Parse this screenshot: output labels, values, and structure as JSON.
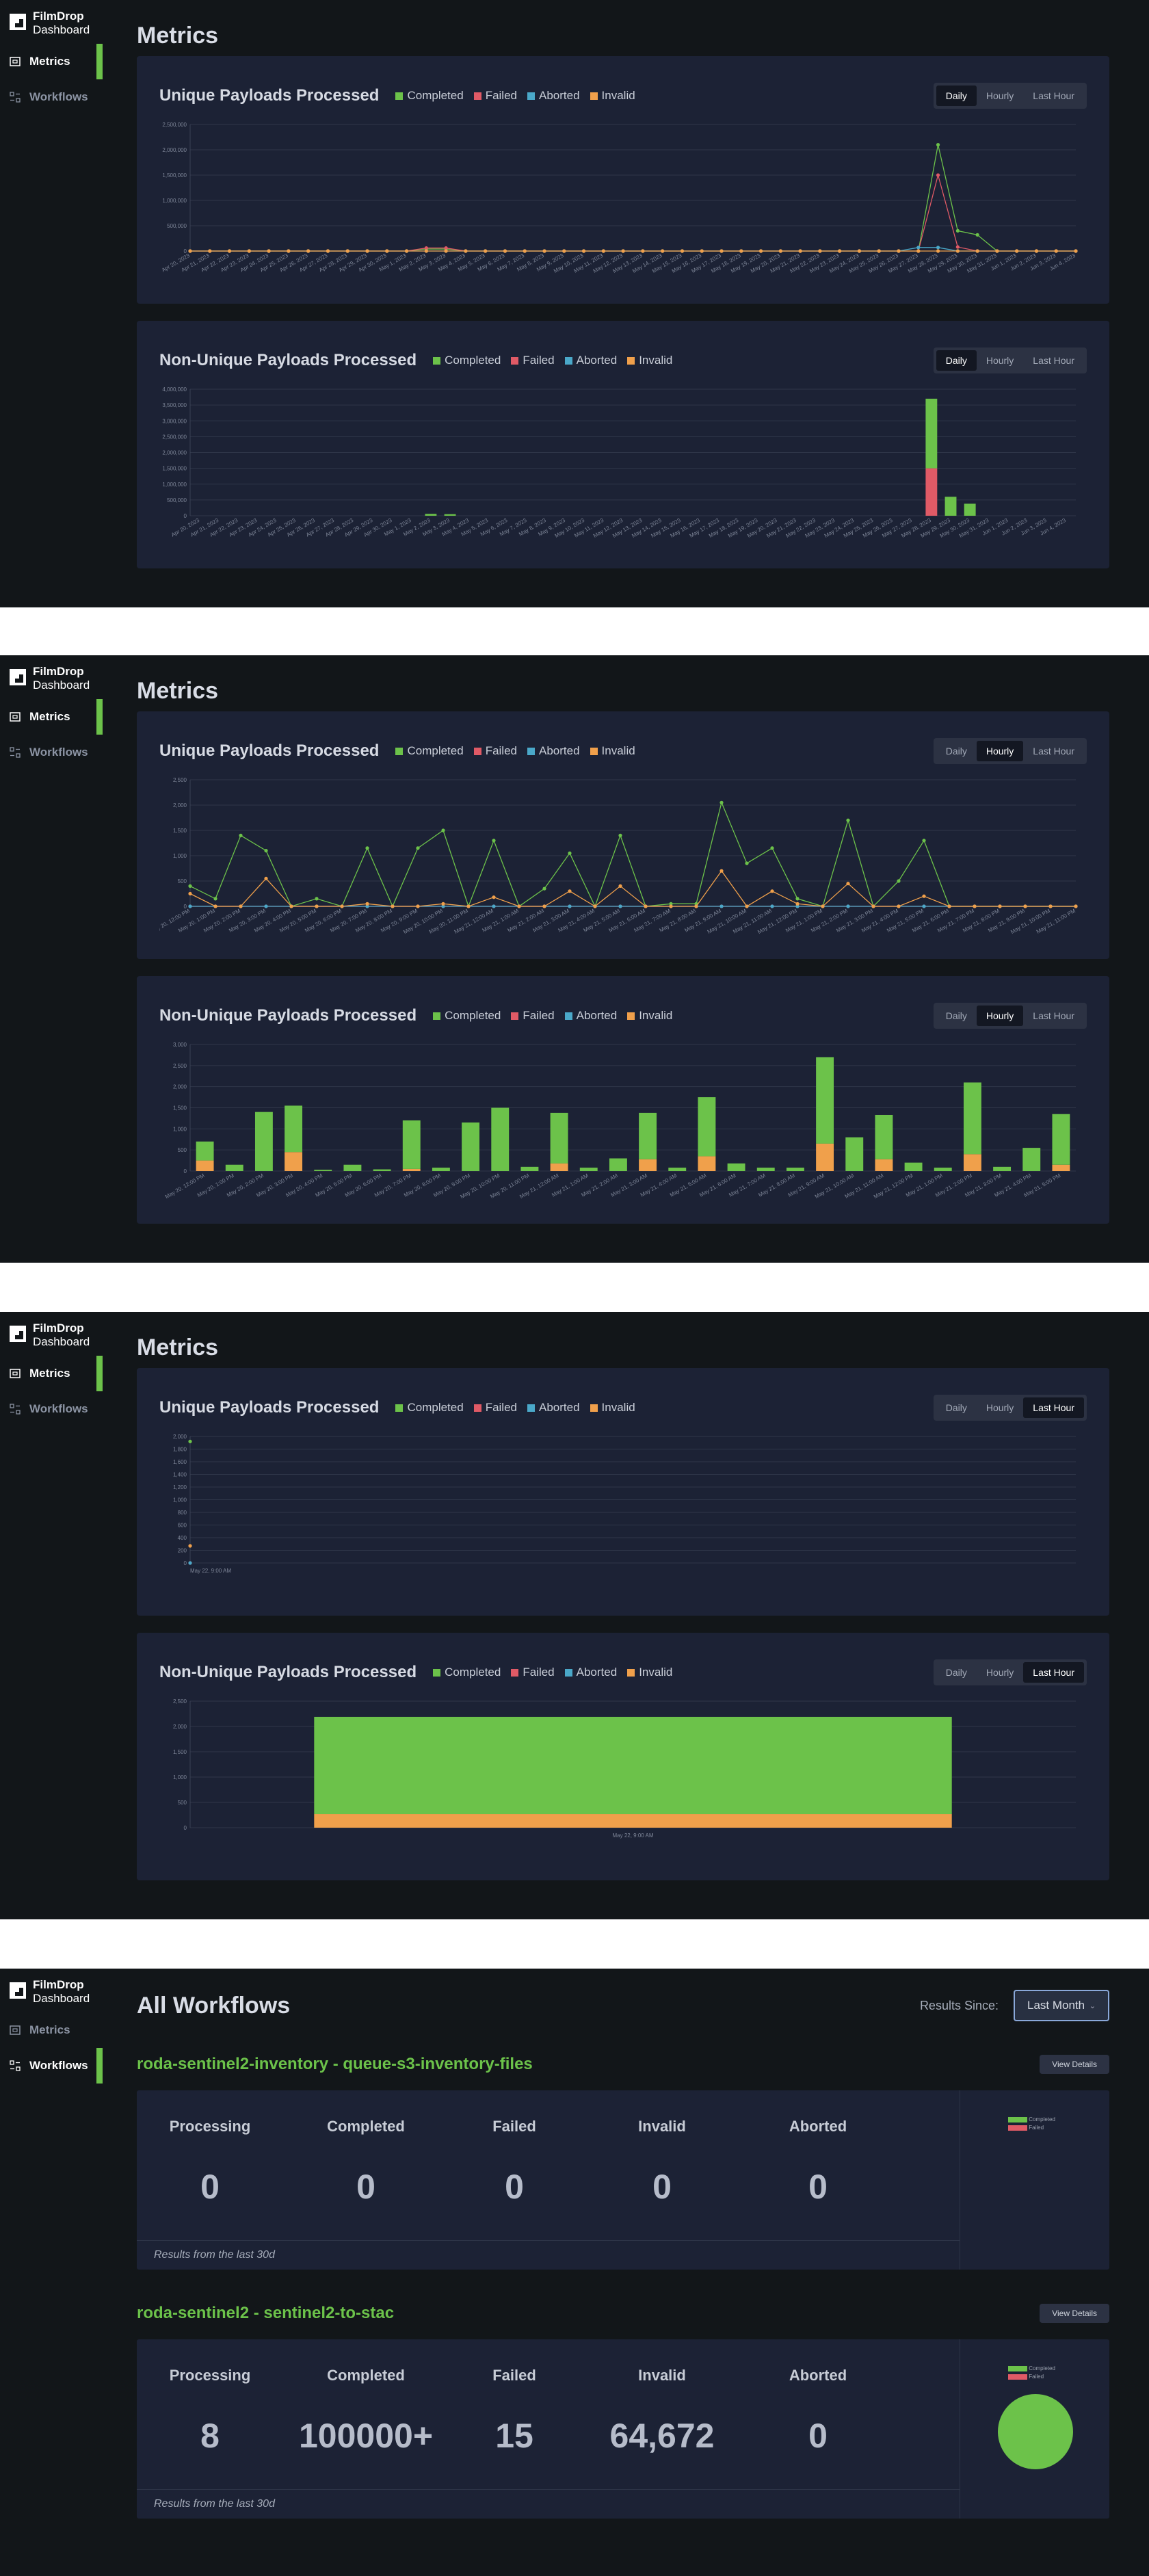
{
  "brand": {
    "name": "FilmDrop",
    "sub": "Dashboard"
  },
  "nav": {
    "metrics": "Metrics",
    "workflows": "Workflows"
  },
  "metrics": {
    "title": "Metrics"
  },
  "legend": {
    "completed": "Completed",
    "failed": "Failed",
    "aborted": "Aborted",
    "invalid": "Invalid"
  },
  "toggle": {
    "daily": "Daily",
    "hourly": "Hourly",
    "last_hour": "Last Hour"
  },
  "colors": {
    "completed": "#6cc24a",
    "failed": "#e05a66",
    "aborted": "#4aa8c9",
    "invalid": "#f0a04b",
    "accent": "#6cc24a"
  },
  "cards": {
    "unique_title": "Unique Payloads Processed",
    "nonunique_title": "Non-Unique Payloads Processed"
  },
  "chart_data": [
    {
      "type": "line",
      "title": "Unique Payloads Processed",
      "view": "Daily",
      "x": [
        "Apr 20, 2023",
        "Apr 21, 2023",
        "Apr 22, 2023",
        "Apr 23, 2023",
        "Apr 24, 2023",
        "Apr 25, 2023",
        "Apr 26, 2023",
        "Apr 27, 2023",
        "Apr 28, 2023",
        "Apr 29, 2023",
        "Apr 30, 2023",
        "May 1, 2023",
        "May 2, 2023",
        "May 3, 2023",
        "May 4, 2023",
        "May 5, 2023",
        "May 6, 2023",
        "May 7, 2023",
        "May 8, 2023",
        "May 9, 2023",
        "May 10, 2023",
        "May 11, 2023",
        "May 12, 2023",
        "May 13, 2023",
        "May 14, 2023",
        "May 15, 2023",
        "May 16, 2023",
        "May 17, 2023",
        "May 18, 2023",
        "May 19, 2023",
        "May 20, 2023",
        "May 21, 2023",
        "May 22, 2023",
        "May 23, 2023",
        "May 24, 2023",
        "May 25, 2023",
        "May 26, 2023",
        "May 27, 2023",
        "May 28, 2023",
        "May 29, 2023",
        "May 30, 2023",
        "May 31, 2023",
        "Jun 1, 2023",
        "Jun 2, 2023",
        "Jun 3, 2023",
        "Jun 4, 2023"
      ],
      "yticks": [
        "0",
        "500,000",
        "1,000,000",
        "1,500,000",
        "2,000,000",
        "2,500,000"
      ],
      "ylim": [
        0,
        2500000
      ],
      "series": [
        {
          "name": "Completed",
          "values": [
            0,
            0,
            0,
            0,
            0,
            0,
            0,
            0,
            0,
            0,
            0,
            0,
            40000,
            40000,
            0,
            0,
            0,
            0,
            0,
            0,
            0,
            0,
            0,
            0,
            0,
            0,
            0,
            0,
            0,
            0,
            0,
            0,
            0,
            0,
            0,
            0,
            0,
            0,
            2100000,
            400000,
            320000,
            0,
            0,
            0,
            0,
            0
          ]
        },
        {
          "name": "Failed",
          "values": [
            0,
            0,
            0,
            0,
            0,
            0,
            0,
            0,
            0,
            0,
            0,
            0,
            60000,
            60000,
            0,
            0,
            0,
            0,
            0,
            0,
            0,
            0,
            0,
            0,
            0,
            0,
            0,
            0,
            0,
            0,
            0,
            0,
            0,
            0,
            0,
            0,
            0,
            0,
            1500000,
            80000,
            0,
            0,
            0,
            0,
            0,
            0
          ]
        },
        {
          "name": "Aborted",
          "values": [
            0,
            0,
            0,
            0,
            0,
            0,
            0,
            0,
            0,
            0,
            0,
            0,
            0,
            0,
            0,
            0,
            0,
            0,
            0,
            0,
            0,
            0,
            0,
            0,
            0,
            0,
            0,
            0,
            0,
            0,
            0,
            0,
            0,
            0,
            0,
            0,
            0,
            70000,
            70000,
            0,
            0,
            0,
            0,
            0,
            0,
            0
          ]
        },
        {
          "name": "Invalid",
          "values": [
            0,
            0,
            0,
            0,
            0,
            0,
            0,
            0,
            0,
            0,
            0,
            0,
            0,
            0,
            0,
            0,
            0,
            0,
            0,
            0,
            0,
            0,
            0,
            0,
            0,
            0,
            0,
            0,
            0,
            0,
            0,
            0,
            0,
            0,
            0,
            0,
            0,
            0,
            0,
            0,
            0,
            0,
            0,
            0,
            0,
            0
          ]
        }
      ]
    },
    {
      "type": "bar",
      "title": "Non-Unique Payloads Processed",
      "view": "Daily",
      "stacked": true,
      "x": [
        "Apr 20, 2023",
        "Apr 21, 2023",
        "Apr 22, 2023",
        "Apr 23, 2023",
        "Apr 24, 2023",
        "Apr 25, 2023",
        "Apr 26, 2023",
        "Apr 27, 2023",
        "Apr 28, 2023",
        "Apr 29, 2023",
        "Apr 30, 2023",
        "May 1, 2023",
        "May 2, 2023",
        "May 3, 2023",
        "May 4, 2023",
        "May 5, 2023",
        "May 6, 2023",
        "May 7, 2023",
        "May 8, 2023",
        "May 9, 2023",
        "May 10, 2023",
        "May 11, 2023",
        "May 12, 2023",
        "May 13, 2023",
        "May 14, 2023",
        "May 15, 2023",
        "May 16, 2023",
        "May 17, 2023",
        "May 18, 2023",
        "May 19, 2023",
        "May 20, 2023",
        "May 21, 2023",
        "May 22, 2023",
        "May 23, 2023",
        "May 24, 2023",
        "May 25, 2023",
        "May 26, 2023",
        "May 27, 2023",
        "May 28, 2023",
        "May 29, 2023",
        "May 30, 2023",
        "May 31, 2023",
        "Jun 1, 2023",
        "Jun 2, 2023",
        "Jun 3, 2023",
        "Jun 4, 2023"
      ],
      "yticks": [
        "0",
        "500,000",
        "1,000,000",
        "1,500,000",
        "2,000,000",
        "2,500,000",
        "3,000,000",
        "3,500,000",
        "4,000,000"
      ],
      "ylim": [
        0,
        4000000
      ],
      "series": [
        {
          "name": "Completed",
          "values": [
            0,
            0,
            0,
            0,
            0,
            0,
            0,
            0,
            0,
            0,
            0,
            0,
            60000,
            50000,
            0,
            0,
            0,
            0,
            0,
            0,
            0,
            0,
            0,
            0,
            0,
            0,
            0,
            0,
            0,
            0,
            0,
            0,
            0,
            0,
            0,
            0,
            0,
            0,
            2200000,
            600000,
            380000,
            0,
            0,
            0,
            0,
            0
          ]
        },
        {
          "name": "Failed",
          "values": [
            0,
            0,
            0,
            0,
            0,
            0,
            0,
            0,
            0,
            0,
            0,
            0,
            0,
            0,
            0,
            0,
            0,
            0,
            0,
            0,
            0,
            0,
            0,
            0,
            0,
            0,
            0,
            0,
            0,
            0,
            0,
            0,
            0,
            0,
            0,
            0,
            0,
            0,
            1500000,
            0,
            0,
            0,
            0,
            0,
            0,
            0
          ]
        },
        {
          "name": "Aborted",
          "values": [
            0,
            0,
            0,
            0,
            0,
            0,
            0,
            0,
            0,
            0,
            0,
            0,
            0,
            0,
            0,
            0,
            0,
            0,
            0,
            0,
            0,
            0,
            0,
            0,
            0,
            0,
            0,
            0,
            0,
            0,
            0,
            0,
            0,
            0,
            0,
            0,
            0,
            0,
            0,
            0,
            0,
            0,
            0,
            0,
            0,
            0
          ]
        },
        {
          "name": "Invalid",
          "values": [
            0,
            0,
            0,
            0,
            0,
            0,
            0,
            0,
            0,
            0,
            0,
            0,
            0,
            0,
            0,
            0,
            0,
            0,
            0,
            0,
            0,
            0,
            0,
            0,
            0,
            0,
            0,
            0,
            0,
            0,
            0,
            0,
            0,
            0,
            0,
            0,
            0,
            0,
            0,
            0,
            0,
            0,
            0,
            0,
            0,
            0
          ]
        }
      ]
    },
    {
      "type": "line",
      "title": "Unique Payloads Processed",
      "view": "Hourly",
      "x": [
        "May 20, 12:00 PM",
        "May 20, 1:00 PM",
        "May 20, 2:00 PM",
        "May 20, 3:00 PM",
        "May 20, 4:00 PM",
        "May 20, 5:00 PM",
        "May 20, 6:00 PM",
        "May 20, 7:00 PM",
        "May 20, 8:00 PM",
        "May 20, 9:00 PM",
        "May 20, 10:00 PM",
        "May 20, 11:00 PM",
        "May 21, 12:00 AM",
        "May 21, 1:00 AM",
        "May 21, 2:00 AM",
        "May 21, 3:00 AM",
        "May 21, 4:00 AM",
        "May 21, 5:00 AM",
        "May 21, 6:00 AM",
        "May 21, 7:00 AM",
        "May 21, 8:00 AM",
        "May 21, 9:00 AM",
        "May 21, 10:00 AM",
        "May 21, 11:00 AM",
        "May 21, 12:00 PM",
        "May 21, 1:00 PM",
        "May 21, 2:00 PM",
        "May 21, 3:00 PM",
        "May 21, 4:00 PM",
        "May 21, 5:00 PM",
        "May 21, 6:00 PM",
        "May 21, 7:00 PM",
        "May 21, 8:00 PM",
        "May 21, 9:00 PM",
        "May 21, 10:00 PM",
        "May 21, 11:00 PM"
      ],
      "yticks": [
        "0",
        "500",
        "1,000",
        "1,500",
        "2,000",
        "2,500"
      ],
      "ylim": [
        0,
        2500
      ],
      "series": [
        {
          "name": "Completed",
          "values": [
            400,
            150,
            1400,
            1100,
            0,
            150,
            0,
            1150,
            0,
            1150,
            1500,
            0,
            1300,
            0,
            350,
            1050,
            0,
            1400,
            0,
            50,
            50,
            2050,
            850,
            1150,
            150,
            0,
            1700,
            0,
            500,
            1300,
            0,
            0,
            0,
            0,
            0,
            0
          ]
        },
        {
          "name": "Failed",
          "values": [
            0,
            0,
            0,
            0,
            0,
            0,
            0,
            0,
            0,
            0,
            0,
            0,
            0,
            0,
            0,
            0,
            0,
            0,
            0,
            0,
            0,
            0,
            0,
            0,
            0,
            0,
            0,
            0,
            0,
            0,
            0,
            0,
            0,
            0,
            0,
            0
          ]
        },
        {
          "name": "Aborted",
          "values": [
            0,
            0,
            0,
            0,
            0,
            0,
            0,
            0,
            0,
            0,
            0,
            0,
            0,
            0,
            0,
            0,
            0,
            0,
            0,
            0,
            0,
            0,
            0,
            0,
            0,
            0,
            0,
            0,
            0,
            0,
            0,
            0,
            0,
            0,
            0,
            0
          ]
        },
        {
          "name": "Invalid",
          "values": [
            250,
            0,
            0,
            550,
            0,
            0,
            0,
            50,
            0,
            0,
            50,
            0,
            180,
            0,
            0,
            300,
            0,
            400,
            0,
            0,
            0,
            700,
            0,
            300,
            50,
            0,
            450,
            0,
            0,
            200,
            0,
            0,
            0,
            0,
            0,
            0
          ]
        }
      ]
    },
    {
      "type": "bar",
      "title": "Non-Unique Payloads Processed",
      "view": "Hourly",
      "stacked": true,
      "x": [
        "May 20, 12:00 PM",
        "May 20, 1:00 PM",
        "May 20, 2:00 PM",
        "May 20, 3:00 PM",
        "May 20, 4:00 PM",
        "May 20, 5:00 PM",
        "May 20, 6:00 PM",
        "May 20, 7:00 PM",
        "May 20, 8:00 PM",
        "May 20, 9:00 PM",
        "May 20, 10:00 PM",
        "May 20, 11:00 PM",
        "May 21, 12:00 AM",
        "May 21, 1:00 AM",
        "May 21, 2:00 AM",
        "May 21, 3:00 AM",
        "May 21, 4:00 AM",
        "May 21, 5:00 AM",
        "May 21, 6:00 AM",
        "May 21, 7:00 AM",
        "May 21, 8:00 AM",
        "May 21, 9:00 AM",
        "May 21, 10:00 AM",
        "May 21, 11:00 AM",
        "May 21, 12:00 PM",
        "May 21, 1:00 PM",
        "May 21, 2:00 PM",
        "May 21, 3:00 PM",
        "May 21, 4:00 PM",
        "May 21, 5:00 PM"
      ],
      "yticks": [
        "0",
        "500",
        "1,000",
        "1,500",
        "2,000",
        "2,500",
        "3,000"
      ],
      "ylim": [
        0,
        3000
      ],
      "series": [
        {
          "name": "Completed",
          "values": [
            450,
            150,
            1400,
            1100,
            30,
            150,
            40,
            1150,
            80,
            1150,
            1500,
            100,
            1200,
            80,
            300,
            1100,
            80,
            1400,
            180,
            80,
            80,
            2050,
            800,
            1050,
            200,
            80,
            1700,
            100,
            550,
            1200
          ]
        },
        {
          "name": "Failed",
          "values": [
            0,
            0,
            0,
            0,
            0,
            0,
            0,
            0,
            0,
            0,
            0,
            0,
            0,
            0,
            0,
            0,
            0,
            0,
            0,
            0,
            0,
            0,
            0,
            0,
            0,
            0,
            0,
            0,
            0,
            0
          ]
        },
        {
          "name": "Aborted",
          "values": [
            0,
            0,
            0,
            0,
            0,
            0,
            0,
            0,
            0,
            0,
            0,
            0,
            0,
            0,
            0,
            0,
            0,
            0,
            0,
            0,
            0,
            0,
            0,
            0,
            0,
            0,
            0,
            0,
            0,
            0
          ]
        },
        {
          "name": "Invalid",
          "values": [
            250,
            0,
            0,
            450,
            0,
            0,
            0,
            50,
            0,
            0,
            0,
            0,
            180,
            0,
            0,
            280,
            0,
            350,
            0,
            0,
            0,
            650,
            0,
            280,
            0,
            0,
            400,
            0,
            0,
            150
          ]
        }
      ]
    },
    {
      "type": "scatter",
      "title": "Unique Payloads Processed",
      "view": "Last Hour",
      "x": [
        "May 22, 9:00 AM"
      ],
      "yticks": [
        "0",
        "200",
        "400",
        "600",
        "800",
        "1,000",
        "1,200",
        "1,400",
        "1,600",
        "1,800",
        "2,000"
      ],
      "ylim": [
        0,
        2000
      ],
      "series": [
        {
          "name": "Completed",
          "values": [
            1920
          ]
        },
        {
          "name": "Failed",
          "values": [
            0
          ]
        },
        {
          "name": "Aborted",
          "values": [
            0
          ]
        },
        {
          "name": "Invalid",
          "values": [
            270
          ]
        }
      ]
    },
    {
      "type": "bar",
      "title": "Non-Unique Payloads Processed",
      "view": "Last Hour",
      "stacked": true,
      "x": [
        "May 22, 9:00 AM"
      ],
      "yticks": [
        "0",
        "500",
        "1,000",
        "1,500",
        "2,000",
        "2,500"
      ],
      "ylim": [
        0,
        2500
      ],
      "series": [
        {
          "name": "Completed",
          "values": [
            1920
          ]
        },
        {
          "name": "Failed",
          "values": [
            0
          ]
        },
        {
          "name": "Aborted",
          "values": [
            0
          ]
        },
        {
          "name": "Invalid",
          "values": [
            270
          ]
        }
      ]
    }
  ],
  "workflows": {
    "title": "All Workflows",
    "results_since_label": "Results Since:",
    "results_since_value": "Last Month",
    "view_details": "View Details",
    "footer": "Results from the last 30d",
    "stat_labels": [
      "Processing",
      "Completed",
      "Failed",
      "Invalid",
      "Aborted"
    ],
    "items": [
      {
        "name": "roda-sentinel2-inventory - queue-s3-inventory-files",
        "values": [
          "0",
          "0",
          "0",
          "0",
          "0"
        ]
      },
      {
        "name": "roda-sentinel2 - sentinel2-to-stac",
        "values": [
          "8",
          "100000+",
          "15",
          "64,672",
          "0"
        ]
      }
    ],
    "pie_legend": {
      "completed": "Completed",
      "failed": "Failed"
    }
  }
}
